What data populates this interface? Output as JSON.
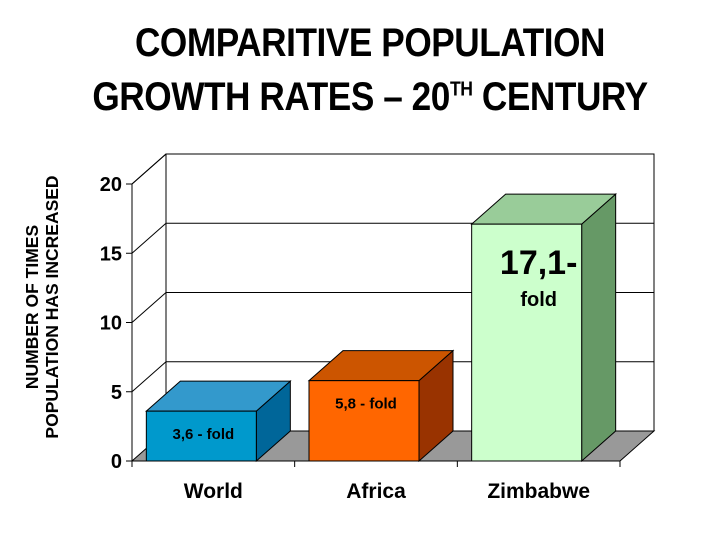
{
  "chart_data": {
    "type": "bar",
    "title_line1": "COMPARITIVE POPULATION",
    "title_line2_prefix": "GROWTH RATES – 20",
    "title_line2_sup": "TH",
    "title_line2_suffix": " CENTURY",
    "ylabel_line1": "NUMBER OF TIMES",
    "ylabel_line2": "POPULATION HAS INCREASED",
    "xlabel": "",
    "categories": [
      "World",
      "Africa",
      "Zimbabwe"
    ],
    "values": [
      3.6,
      5.8,
      17.1
    ],
    "data_labels": [
      "3,6 - fold",
      "5,8 - fold",
      "17,1-"
    ],
    "data_label_sub": [
      "",
      "",
      "fold"
    ],
    "ylim": [
      0,
      20
    ],
    "yticks": [
      0,
      5,
      10,
      15,
      20
    ],
    "ytick_labels": [
      "0",
      "5",
      "10",
      "15",
      "20"
    ],
    "grid": true,
    "legend": "none",
    "style": "3d",
    "colors": {
      "front": [
        "#0099CC",
        "#FF6600",
        "#CCFFCC"
      ],
      "side": [
        "#006699",
        "#993300",
        "#669966"
      ],
      "top": [
        "#3399CC",
        "#CC5500",
        "#99CC99"
      ],
      "floor": "#999999",
      "grid": "#000000"
    }
  }
}
